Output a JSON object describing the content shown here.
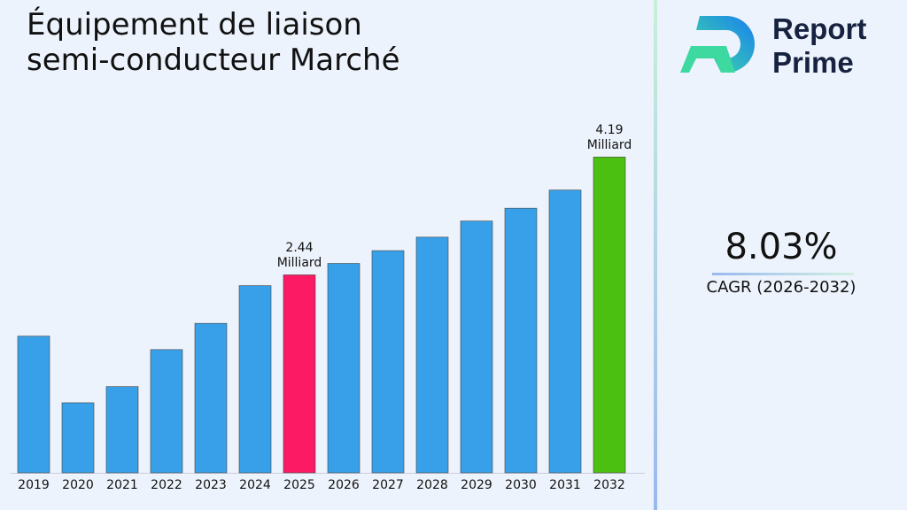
{
  "chart_data": {
    "type": "bar",
    "title": "Équipement de liaison semi-conducteur Marché",
    "categories": [
      "2019",
      "2020",
      "2021",
      "2022",
      "2023",
      "2024",
      "2025",
      "2026",
      "2027",
      "2028",
      "2029",
      "2030",
      "2031",
      "2032"
    ],
    "values": [
      1.53,
      0.54,
      0.78,
      1.33,
      1.72,
      2.28,
      2.44,
      2.61,
      2.8,
      3.0,
      3.24,
      3.43,
      3.7,
      4.19
    ],
    "value_labels": [
      null,
      null,
      null,
      null,
      null,
      null,
      "2.44 Milliard",
      null,
      null,
      null,
      null,
      null,
      null,
      "4.19 Milliard"
    ],
    "colors": [
      "#38a0e8",
      "#38a0e8",
      "#38a0e8",
      "#38a0e8",
      "#38a0e8",
      "#38a0e8",
      "#fc1a64",
      "#38a0e8",
      "#38a0e8",
      "#38a0e8",
      "#38a0e8",
      "#38a0e8",
      "#38a0e8",
      "#4cc010"
    ],
    "ylim": [
      -0.5,
      4.55
    ]
  },
  "sidebar": {
    "brand_line1": "Report",
    "brand_line2": "Prime",
    "cagr_value": "8.03%",
    "cagr_label": "CAGR (2026-2032)"
  }
}
